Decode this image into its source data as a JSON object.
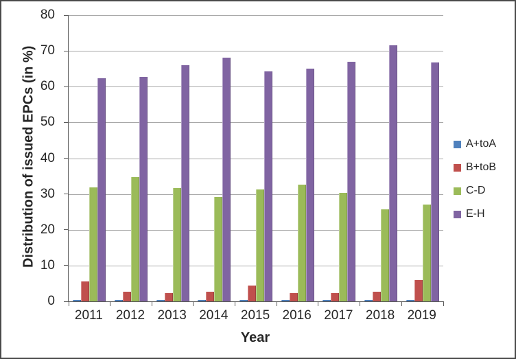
{
  "chart_data": {
    "type": "bar",
    "title": "",
    "xlabel": "Year",
    "ylabel": "Distribution of issued EPCs (in %)",
    "categories": [
      "2011",
      "2012",
      "2013",
      "2014",
      "2015",
      "2016",
      "2017",
      "2018",
      "2019"
    ],
    "series": [
      {
        "name": "A+toA",
        "color": "#4F81BD",
        "values": [
          0.3,
          0.3,
          0.3,
          0.3,
          0.3,
          0.3,
          0.3,
          0.3,
          0.4
        ]
      },
      {
        "name": "B+toB",
        "color": "#C0504D",
        "values": [
          5.5,
          2.6,
          2.4,
          2.7,
          4.5,
          2.3,
          2.4,
          2.6,
          6.0
        ]
      },
      {
        "name": "C-D",
        "color": "#9BBB59",
        "values": [
          31.9,
          34.8,
          31.7,
          29.2,
          31.3,
          32.7,
          30.4,
          25.8,
          27.0
        ]
      },
      {
        "name": "E-H",
        "color": "#8064A2",
        "values": [
          62.3,
          62.8,
          66.0,
          68.2,
          64.3,
          65.0,
          67.0,
          71.5,
          66.8
        ]
      }
    ],
    "ylim": [
      0,
      80
    ],
    "ytick_step": 10,
    "yticks": [
      0,
      10,
      20,
      30,
      40,
      50,
      60,
      70,
      80
    ],
    "grid": true,
    "legend_position": "right"
  },
  "style": {
    "gridline_color": "#A8A8A8",
    "axis_color": "#595959",
    "text_color": "#262626",
    "background_color": "#FFFFFF",
    "border_color": "#4A4A4A"
  }
}
